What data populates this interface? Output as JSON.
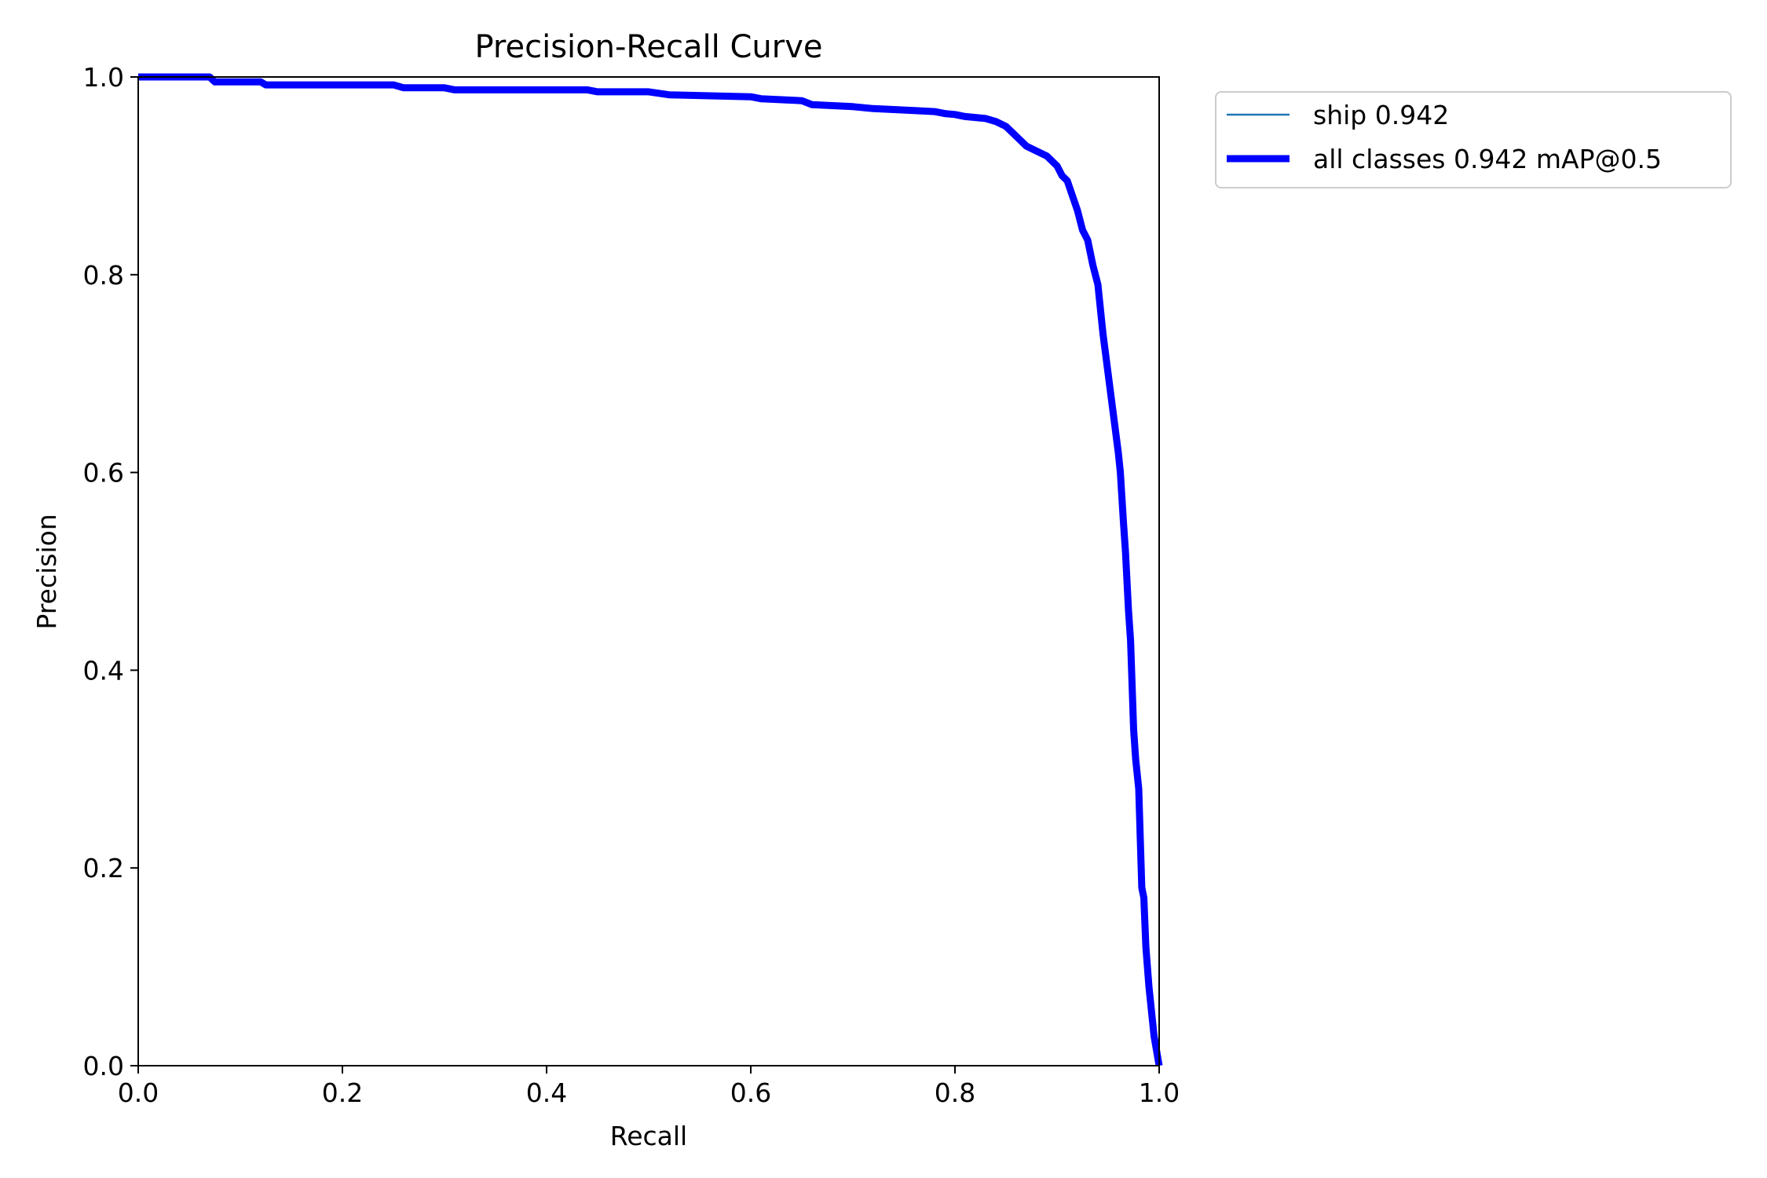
{
  "chart_data": {
    "type": "line",
    "title": "Precision-Recall Curve",
    "xlabel": "Recall",
    "ylabel": "Precision",
    "xlim": [
      0,
      1
    ],
    "ylim": [
      0,
      1
    ],
    "xticks": [
      "0.0",
      "0.2",
      "0.4",
      "0.6",
      "0.8",
      "1.0"
    ],
    "yticks": [
      "0.0",
      "0.2",
      "0.4",
      "0.6",
      "0.8",
      "1.0"
    ],
    "grid": false,
    "legend_position": "outside-top-right",
    "series": [
      {
        "name": "ship 0.942",
        "color": "#1f77b4",
        "x": [
          0,
          0.07,
          0.075,
          0.12,
          0.125,
          0.25,
          0.26,
          0.3,
          0.31,
          0.44,
          0.45,
          0.5,
          0.52,
          0.6,
          0.61,
          0.65,
          0.66,
          0.7,
          0.72,
          0.74,
          0.76,
          0.78,
          0.79,
          0.8,
          0.81,
          0.83,
          0.84,
          0.85,
          0.86,
          0.87,
          0.88,
          0.89,
          0.9,
          0.905,
          0.91,
          0.915,
          0.92,
          0.925,
          0.93,
          0.935,
          0.94,
          0.945,
          0.95,
          0.955,
          0.96,
          0.962,
          0.965,
          0.967,
          0.97,
          0.972,
          0.975,
          0.977,
          0.98,
          0.983,
          0.985,
          0.987,
          0.99,
          0.995,
          1.0
        ],
        "y": [
          1.0,
          1.0,
          0.995,
          0.995,
          0.992,
          0.992,
          0.989,
          0.989,
          0.987,
          0.987,
          0.985,
          0.985,
          0.982,
          0.98,
          0.978,
          0.976,
          0.972,
          0.97,
          0.968,
          0.967,
          0.966,
          0.965,
          0.963,
          0.962,
          0.96,
          0.958,
          0.955,
          0.95,
          0.94,
          0.93,
          0.925,
          0.92,
          0.91,
          0.9,
          0.895,
          0.88,
          0.865,
          0.845,
          0.835,
          0.81,
          0.79,
          0.74,
          0.7,
          0.66,
          0.62,
          0.6,
          0.55,
          0.52,
          0.46,
          0.43,
          0.34,
          0.31,
          0.28,
          0.18,
          0.17,
          0.12,
          0.08,
          0.03,
          0.0
        ]
      },
      {
        "name": "all classes 0.942 mAP@0.5",
        "color": "#0000ff",
        "x": [
          0,
          0.07,
          0.075,
          0.12,
          0.125,
          0.25,
          0.26,
          0.3,
          0.31,
          0.44,
          0.45,
          0.5,
          0.52,
          0.6,
          0.61,
          0.65,
          0.66,
          0.7,
          0.72,
          0.74,
          0.76,
          0.78,
          0.79,
          0.8,
          0.81,
          0.83,
          0.84,
          0.85,
          0.86,
          0.87,
          0.88,
          0.89,
          0.9,
          0.905,
          0.91,
          0.915,
          0.92,
          0.925,
          0.93,
          0.935,
          0.94,
          0.945,
          0.95,
          0.955,
          0.96,
          0.962,
          0.965,
          0.967,
          0.97,
          0.972,
          0.975,
          0.977,
          0.98,
          0.983,
          0.985,
          0.987,
          0.99,
          0.995,
          1.0
        ],
        "y": [
          1.0,
          1.0,
          0.995,
          0.995,
          0.992,
          0.992,
          0.989,
          0.989,
          0.987,
          0.987,
          0.985,
          0.985,
          0.982,
          0.98,
          0.978,
          0.976,
          0.972,
          0.97,
          0.968,
          0.967,
          0.966,
          0.965,
          0.963,
          0.962,
          0.96,
          0.958,
          0.955,
          0.95,
          0.94,
          0.93,
          0.925,
          0.92,
          0.91,
          0.9,
          0.895,
          0.88,
          0.865,
          0.845,
          0.835,
          0.81,
          0.79,
          0.74,
          0.7,
          0.66,
          0.62,
          0.6,
          0.55,
          0.52,
          0.46,
          0.43,
          0.34,
          0.31,
          0.28,
          0.18,
          0.17,
          0.12,
          0.08,
          0.03,
          0.0
        ]
      }
    ]
  }
}
